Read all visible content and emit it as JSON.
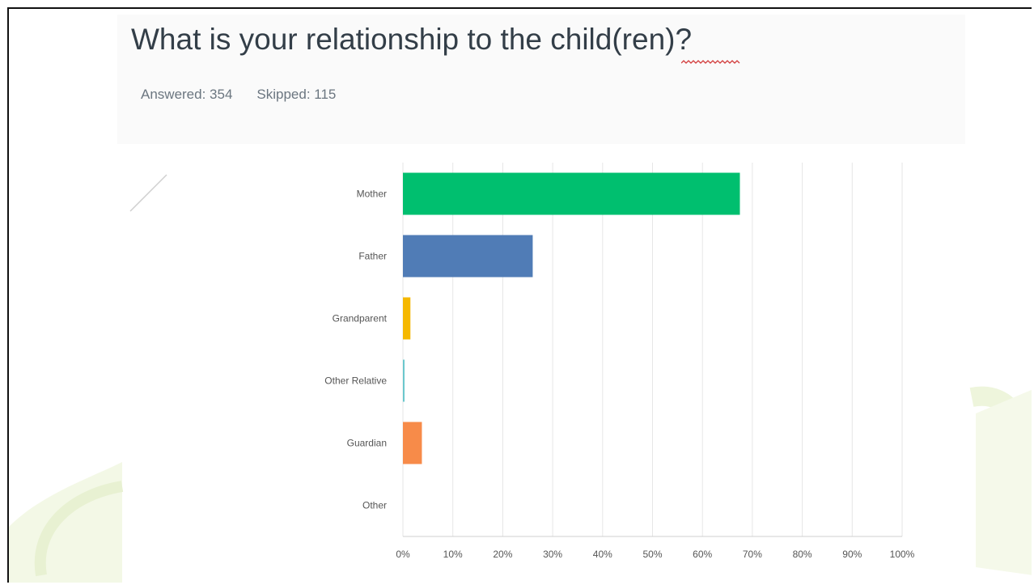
{
  "question": {
    "title": "What is your relationship to the child(ren)?",
    "answered": "Answered: 354",
    "skipped": "Skipped: 115"
  },
  "colors": {
    "Mother": "#00bf6f",
    "Father": "#507cb6",
    "Grandparent": "#f5b800",
    "Other Relative": "#6bc8cd",
    "Guardian": "#f78b49",
    "Other": "#9b9b9b",
    "grid": "#e6e6e6",
    "label": "#555555"
  },
  "chart_data": {
    "type": "bar",
    "orientation": "horizontal",
    "categories": [
      "Mother",
      "Father",
      "Grandparent",
      "Other Relative",
      "Guardian",
      "Other"
    ],
    "values": [
      67.5,
      26,
      1.5,
      0.3,
      3.8,
      0
    ],
    "xlim": [
      0,
      100
    ],
    "xticks": [
      "0%",
      "10%",
      "20%",
      "30%",
      "40%",
      "50%",
      "60%",
      "70%",
      "80%",
      "90%",
      "100%"
    ],
    "grid": true
  }
}
